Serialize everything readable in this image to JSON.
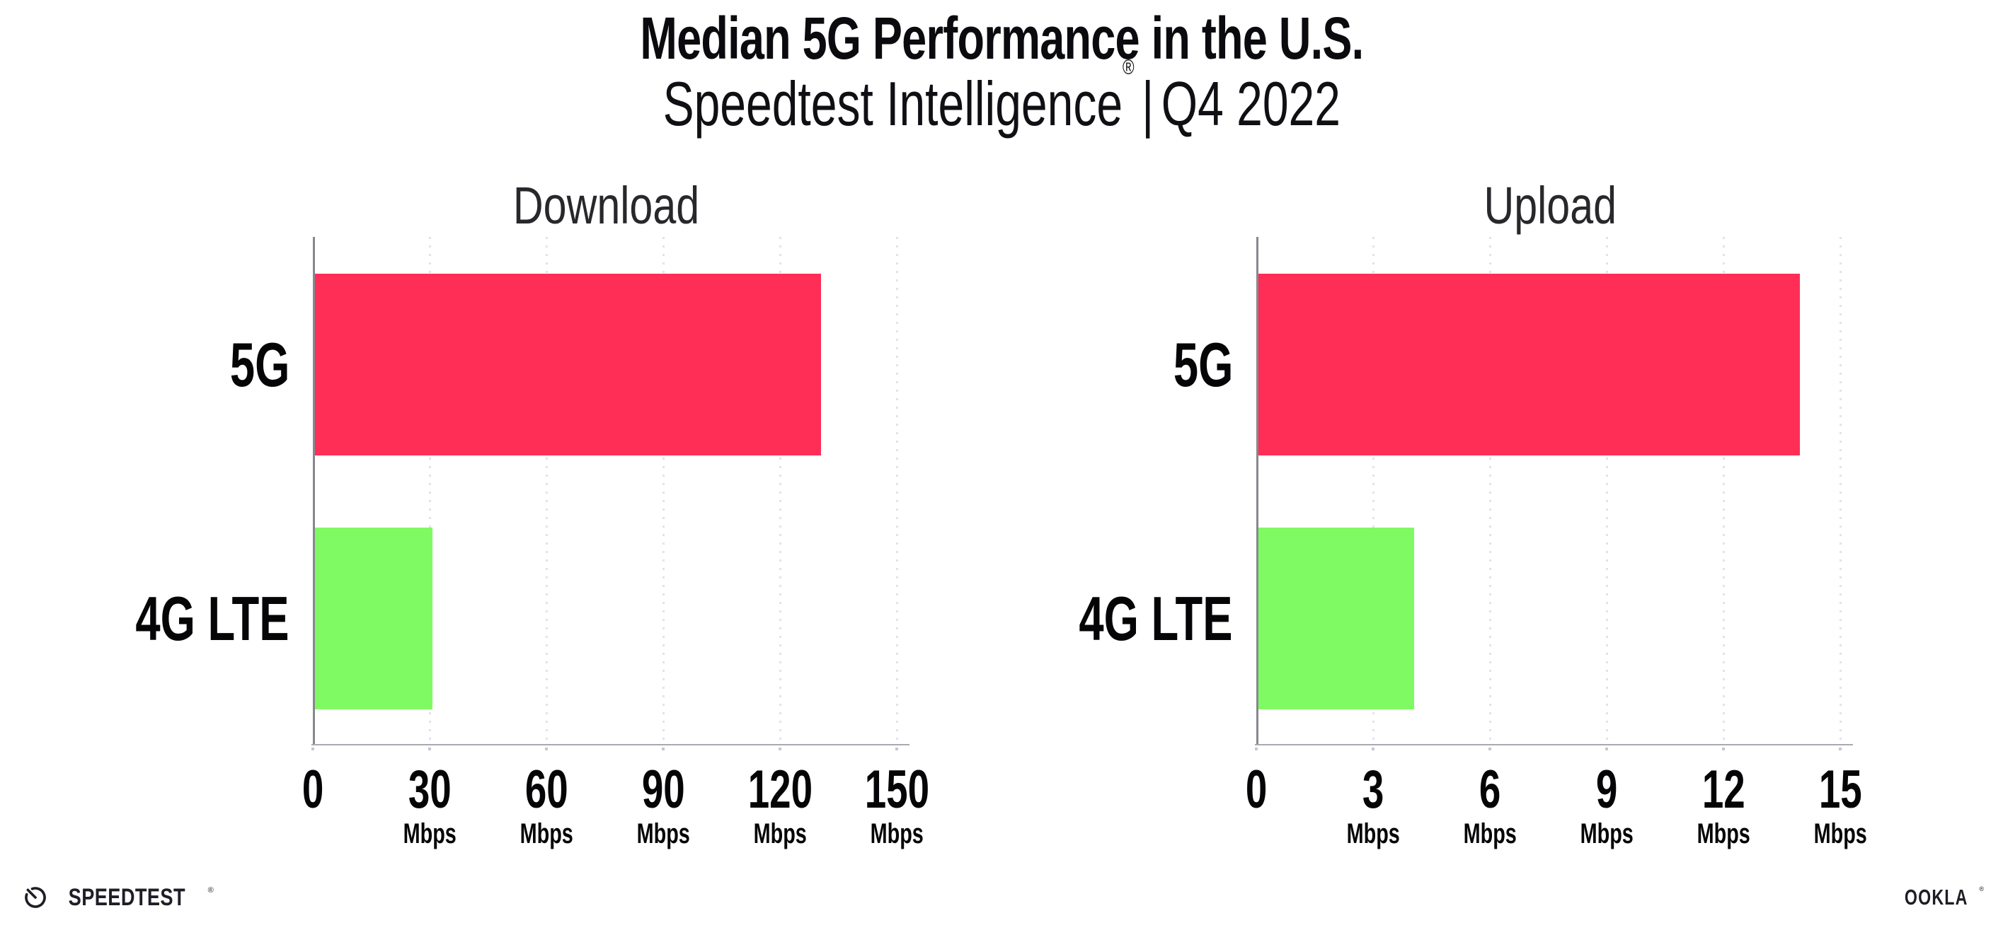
{
  "header": {
    "title": "Median 5G Performance in the U.S.",
    "subtitle_product": "Speedtest Intelligence",
    "subtitle_registered": "®",
    "subtitle_separator": "|",
    "subtitle_period": "Q4 2022"
  },
  "chart_data": [
    {
      "type": "bar",
      "orientation": "horizontal",
      "title": "Download",
      "categories": [
        "5G",
        "4G LTE"
      ],
      "values": [
        130,
        30.2
      ],
      "unit": "Mbps",
      "xlim": [
        0,
        150
      ],
      "xticks": [
        0,
        30,
        60,
        90,
        120,
        150
      ],
      "bar_colors": [
        "#ff2e56",
        "#80fa62"
      ],
      "legend": "none",
      "grid": "vertical-dotted"
    },
    {
      "type": "bar",
      "orientation": "horizontal",
      "title": "Upload",
      "categories": [
        "5G",
        "4G LTE"
      ],
      "values": [
        13.9,
        4
      ],
      "unit": "Mbps",
      "xlim": [
        0,
        15
      ],
      "xticks": [
        0,
        3,
        6,
        9,
        12,
        15
      ],
      "bar_colors": [
        "#ff2e56",
        "#80fa62"
      ],
      "legend": "none",
      "grid": "vertical-dotted"
    }
  ],
  "footer": {
    "speedtest_wordmark": "SPEEDTEST",
    "speedtest_trademark": "®",
    "ookla_wordmark": "OOKLA",
    "ookla_trademark": "®"
  },
  "colors": {
    "bar_5g": "#ff2e56",
    "bar_4g_lte": "#80fa62",
    "axis_spine": "#87878f",
    "axis_line": "#a9a9b2",
    "gridline_dots": "#e2e2ee",
    "text": "#0b0b0f",
    "background": "#ffffff"
  }
}
